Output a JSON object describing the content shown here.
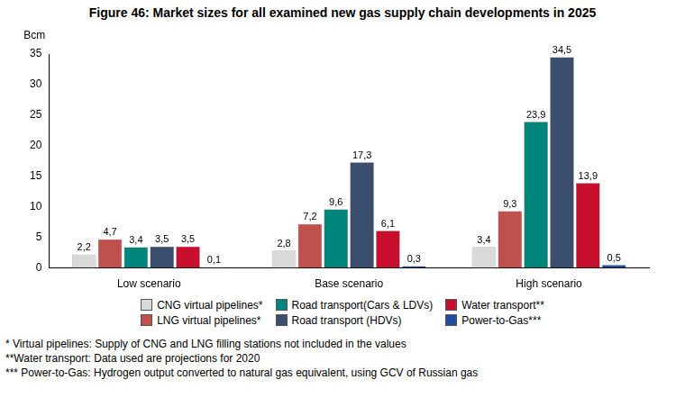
{
  "chart_data": {
    "type": "bar",
    "title": "Figure 46: Market sizes for all examined new gas supply chain developments in 2025",
    "ylabel": "Bcm",
    "categories": [
      "Low scenario",
      "Base scenario",
      "High scenario"
    ],
    "series": [
      {
        "name": "CNG virtual pipelines*",
        "color": "#d9d9d9",
        "values": [
          2.2,
          2.8,
          3.4
        ],
        "value_labels": [
          "2,2",
          "2,8",
          "3,4"
        ]
      },
      {
        "name": "LNG virtual pipelines*",
        "color": "#c0504d",
        "values": [
          4.7,
          7.2,
          9.3
        ],
        "value_labels": [
          "4,7",
          "7,2",
          "9,3"
        ]
      },
      {
        "name": "Road transport(Cars & LDVs)",
        "color": "#00857a",
        "values": [
          3.4,
          9.6,
          23.9
        ],
        "value_labels": [
          "3,4",
          "9,6",
          "23,9"
        ]
      },
      {
        "name": "Road transport (HDVs)",
        "color": "#3b4e6e",
        "values": [
          3.5,
          17.3,
          34.5
        ],
        "value_labels": [
          "3,5",
          "17,3",
          "34,5"
        ]
      },
      {
        "name": "Water transport**",
        "color": "#c8102e",
        "values": [
          3.5,
          6.1,
          13.9
        ],
        "value_labels": [
          "3,5",
          "6,1",
          "13,9"
        ]
      },
      {
        "name": "Power-to-Gas***",
        "color": "#1f4e9c",
        "values": [
          0.1,
          0.3,
          0.5
        ],
        "value_labels": [
          "0,1",
          "0,3",
          "0,5"
        ]
      }
    ],
    "ylim": [
      0,
      35
    ],
    "yticks": [
      0,
      5,
      10,
      15,
      20,
      25,
      30,
      35
    ],
    "grid": false,
    "legend": "bottom",
    "data_labels": true,
    "annotations": [
      "* Virtual pipelines: Supply of CNG and LNG filling stations not included in the values",
      "**Water transport: Data used are projections for 2020",
      "*** Power-to-Gas: Hydrogen output converted to natural gas equivalent, using GCV of Russian gas"
    ]
  }
}
